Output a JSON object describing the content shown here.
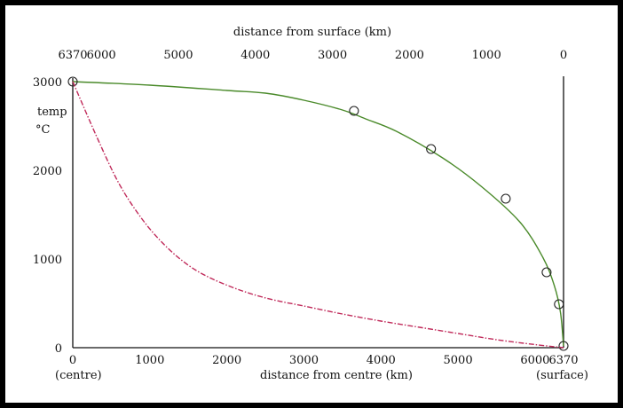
{
  "chart_data": {
    "type": "line",
    "top_axis": {
      "label": "distance from surface (km)",
      "ticks": [
        "6370",
        "6000",
        "5000",
        "4000",
        "3000",
        "2000",
        "1000",
        "0"
      ]
    },
    "bottom_axis": {
      "label": "distance from centre (km)",
      "ticks": [
        "0",
        "1000",
        "2000",
        "3000",
        "4000",
        "5000",
        "6000",
        "6370"
      ],
      "left_note": "(centre)",
      "right_note": "(surface)"
    },
    "y_axis": {
      "label_line1": "temp",
      "label_line2": "°C",
      "ticks": [
        "3000",
        "2000",
        "1000",
        "0"
      ]
    },
    "xlim": [
      0,
      6370
    ],
    "ylim": [
      0,
      3000
    ],
    "series": [
      {
        "color": "#4a8a2a",
        "style": "solid",
        "curve": [
          [
            0,
            3000
          ],
          [
            1000,
            2960
          ],
          [
            2000,
            2900
          ],
          [
            2500,
            2870
          ],
          [
            3000,
            2790
          ],
          [
            3500,
            2680
          ],
          [
            3800,
            2580
          ],
          [
            4200,
            2440
          ],
          [
            4800,
            2140
          ],
          [
            5300,
            1820
          ],
          [
            5800,
            1420
          ],
          [
            6100,
            1020
          ],
          [
            6250,
            700
          ],
          [
            6330,
            400
          ],
          [
            6370,
            20
          ]
        ],
        "markers": [
          [
            0,
            3000
          ],
          [
            3650,
            2670
          ],
          [
            4650,
            2240
          ],
          [
            5620,
            1680
          ],
          [
            6150,
            850
          ],
          [
            6310,
            490
          ],
          [
            6370,
            20
          ]
        ]
      },
      {
        "color": "#c02a5a",
        "style": "dash-dot",
        "curve": [
          [
            0,
            3000
          ],
          [
            300,
            2400
          ],
          [
            600,
            1850
          ],
          [
            900,
            1450
          ],
          [
            1200,
            1150
          ],
          [
            1500,
            930
          ],
          [
            1800,
            780
          ],
          [
            2200,
            640
          ],
          [
            2600,
            540
          ],
          [
            3000,
            470
          ],
          [
            3500,
            380
          ],
          [
            4000,
            300
          ],
          [
            4500,
            230
          ],
          [
            5000,
            160
          ],
          [
            5500,
            90
          ],
          [
            6000,
            35
          ],
          [
            6370,
            0
          ]
        ],
        "markers": []
      }
    ]
  },
  "colors": {
    "frame": "#000000",
    "background": "#ffffff",
    "axis": "#111111"
  }
}
